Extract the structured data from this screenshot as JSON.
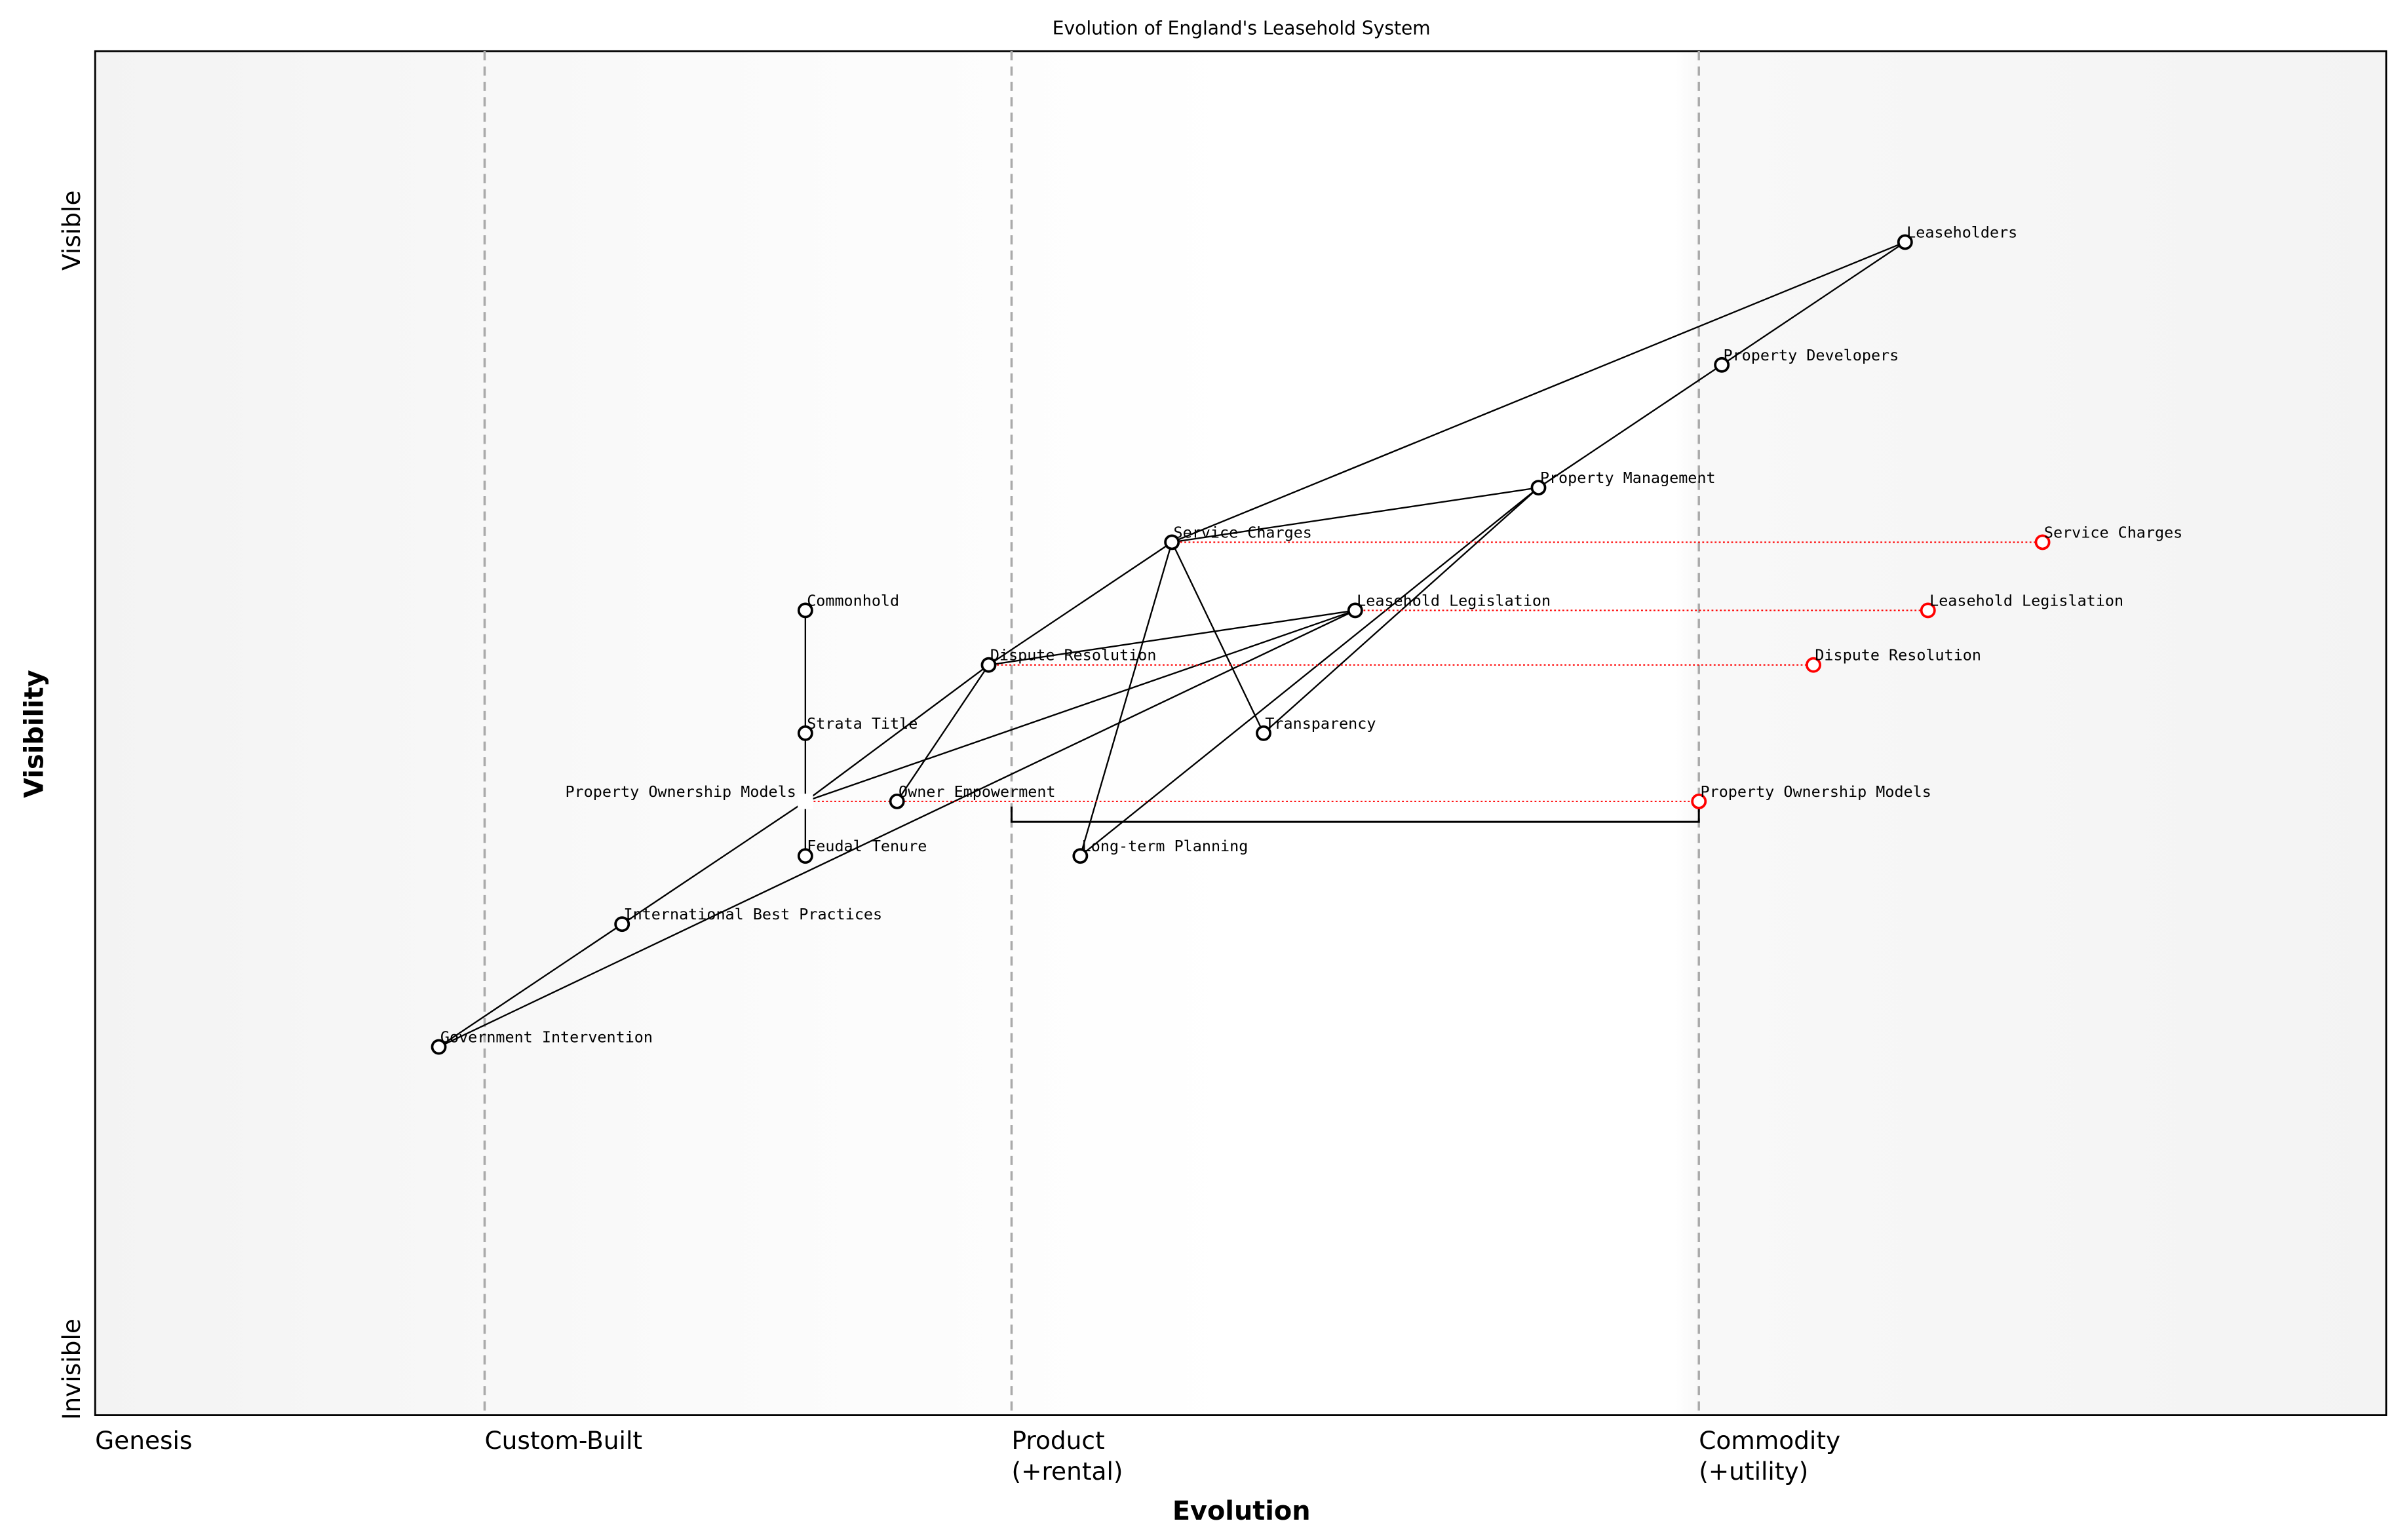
{
  "title": "Evolution of England's Leasehold System",
  "x_axis": {
    "label": "Evolution",
    "stages": [
      {
        "label": "Genesis",
        "line2": "",
        "evolution": 0.0
      },
      {
        "label": "Custom-Built",
        "line2": "",
        "evolution": 0.17
      },
      {
        "label": "Product",
        "line2": "(+rental)",
        "evolution": 0.4
      },
      {
        "label": "Commodity",
        "line2": "(+utility)",
        "evolution": 0.7
      }
    ]
  },
  "y_axis": {
    "label": "Visibility",
    "top": "Visible",
    "bottom": "Invisible"
  },
  "colors": {
    "node": "#000000",
    "evolved": "#ff0000",
    "stage_line": "#aaaaaa",
    "edge": "#000000"
  },
  "components": [
    {
      "id": "leaseholders",
      "label": "Leaseholders",
      "evolution": 0.79,
      "visibility": 0.86
    },
    {
      "id": "developers",
      "label": "Property Developers",
      "evolution": 0.71,
      "visibility": 0.77
    },
    {
      "id": "management",
      "label": "Property Management",
      "evolution": 0.63,
      "visibility": 0.68
    },
    {
      "id": "service",
      "label": "Service Charges",
      "evolution": 0.47,
      "visibility": 0.64
    },
    {
      "id": "legislation",
      "label": "Leasehold Legislation",
      "evolution": 0.55,
      "visibility": 0.59
    },
    {
      "id": "commonhold",
      "label": "Commonhold",
      "evolution": 0.31,
      "visibility": 0.59
    },
    {
      "id": "dispute",
      "label": "Dispute Resolution",
      "evolution": 0.39,
      "visibility": 0.55
    },
    {
      "id": "strata",
      "label": "Strata Title",
      "evolution": 0.31,
      "visibility": 0.5
    },
    {
      "id": "transparency",
      "label": "Transparency",
      "evolution": 0.51,
      "visibility": 0.5
    },
    {
      "id": "pom",
      "label": "Property Ownership Models",
      "evolution": 0.31,
      "visibility": 0.45,
      "pipeline": true
    },
    {
      "id": "empowerment",
      "label": "Owner Empowerment",
      "evolution": 0.35,
      "visibility": 0.45
    },
    {
      "id": "feudal",
      "label": "Feudal Tenure",
      "evolution": 0.31,
      "visibility": 0.41
    },
    {
      "id": "longterm",
      "label": "Long-term Planning",
      "evolution": 0.43,
      "visibility": 0.41
    },
    {
      "id": "ibp",
      "label": "International Best Practices",
      "evolution": 0.23,
      "visibility": 0.36
    },
    {
      "id": "gov",
      "label": "Government Intervention",
      "evolution": 0.15,
      "visibility": 0.27
    }
  ],
  "evolved": [
    {
      "from": "service",
      "label": "Service Charges",
      "evolution": 0.85,
      "visibility": 0.64
    },
    {
      "from": "legislation",
      "label": "Leasehold Legislation",
      "evolution": 0.8,
      "visibility": 0.59
    },
    {
      "from": "dispute",
      "label": "Dispute Resolution",
      "evolution": 0.75,
      "visibility": 0.55
    },
    {
      "from": "pom",
      "label": "Property Ownership Models",
      "evolution": 0.7,
      "visibility": 0.45
    }
  ],
  "pipelines": [
    {
      "component": "pom",
      "start": 0.4,
      "end": 0.7,
      "visibility": 0.435
    }
  ],
  "links": [
    [
      "leaseholders",
      "service"
    ],
    [
      "leaseholders",
      "developers"
    ],
    [
      "developers",
      "management"
    ],
    [
      "management",
      "service"
    ],
    [
      "management",
      "transparency"
    ],
    [
      "management",
      "longterm"
    ],
    [
      "service",
      "transparency"
    ],
    [
      "service",
      "longterm"
    ],
    [
      "service",
      "dispute"
    ],
    [
      "dispute",
      "legislation"
    ],
    [
      "dispute",
      "empowerment"
    ],
    [
      "dispute",
      "pom"
    ],
    [
      "pom",
      "legislation"
    ],
    [
      "gov",
      "legislation"
    ],
    [
      "gov",
      "ibp"
    ],
    [
      "ibp",
      "pom"
    ],
    [
      "commonhold",
      "strata"
    ],
    [
      "strata",
      "pom"
    ],
    [
      "pom",
      "feudal"
    ]
  ]
}
